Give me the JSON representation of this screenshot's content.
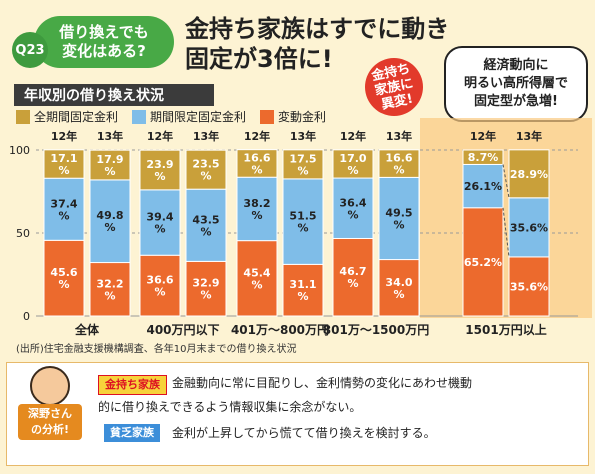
{
  "header": {
    "q_number": "Q23",
    "question_line1": "借り換えでも",
    "question_line2": "変化はある?",
    "headline_line1": "金持ち家族はすでに動き",
    "headline_line2": "固定が3倍に!"
  },
  "stamp": {
    "line1": "金持ち",
    "line2": "家族に",
    "line3": "異変!"
  },
  "callout": {
    "line1": "経済動向に",
    "line2": "明るい高所得層で",
    "line3": "固定型が急増!"
  },
  "chart_title": "年収別の借り換え状況",
  "legend": [
    {
      "label": "全期間固定金利",
      "color": "#c9a03a"
    },
    {
      "label": "期間限定固定金利",
      "color": "#7fbde8"
    },
    {
      "label": "変動金利",
      "color": "#ec6a2d"
    }
  ],
  "chart_data": {
    "type": "bar",
    "stacked": true,
    "ylim": [
      0,
      100
    ],
    "yticks": [
      0,
      50,
      100
    ],
    "groups": [
      "全体",
      "400万円以下",
      "401万～800万円",
      "801万～1500万円",
      "1501万円以上"
    ],
    "years": [
      "12年",
      "13年"
    ],
    "series": [
      {
        "name": "全期間固定金利",
        "values": [
          [
            17.1,
            17.9
          ],
          [
            23.9,
            23.5
          ],
          [
            16.6,
            17.5
          ],
          [
            17.0,
            16.6
          ],
          [
            8.7,
            28.9
          ]
        ]
      },
      {
        "name": "期間限定固定金利",
        "values": [
          [
            37.4,
            49.8
          ],
          [
            39.4,
            43.5
          ],
          [
            38.2,
            51.5
          ],
          [
            36.4,
            49.5
          ],
          [
            26.1,
            35.6
          ]
        ]
      },
      {
        "name": "変動金利",
        "values": [
          [
            45.6,
            32.2
          ],
          [
            36.6,
            32.9
          ],
          [
            45.4,
            31.1
          ],
          [
            46.7,
            34.0
          ],
          [
            65.2,
            35.6
          ]
        ]
      }
    ],
    "labels": [
      [
        [
          "17.1\n%",
          "37.4\n%",
          "45.6\n%"
        ],
        [
          "17.9\n%",
          "49.8\n%",
          "32.2\n%"
        ]
      ],
      [
        [
          "23.9\n%",
          "39.4\n%",
          "36.6\n%"
        ],
        [
          "23.5\n%",
          "43.5\n%",
          "32.9\n%"
        ]
      ],
      [
        [
          "16.6\n%",
          "38.2\n%",
          "45.4\n%"
        ],
        [
          "17.5\n%",
          "51.5\n%",
          "31.1\n%"
        ]
      ],
      [
        [
          "17.0\n%",
          "36.4\n%",
          "46.7\n%"
        ],
        [
          "16.6\n%",
          "49.5\n%",
          "34.0\n%"
        ]
      ],
      [
        [
          "8.7%",
          "26.1%",
          "65.2%"
        ],
        [
          "28.9%",
          "35.6%",
          "35.6%"
        ]
      ]
    ]
  },
  "source": "(出所)住宅金融支援機構調査、各年10月末までの借り換え状況",
  "advisor": {
    "line1": "深野さん",
    "line2": "の分析!"
  },
  "notes": {
    "rich_tag": "金持ち家族",
    "rich_text1": "金融動向に常に目配りし、金利情勢の変化にあわせ機動",
    "rich_text2": "的に借り換えできるよう情報収集に余念がない。",
    "poor_tag": "貧乏家族",
    "poor_text": "金利が上昇してから慌てて借り換えを検討する。"
  }
}
